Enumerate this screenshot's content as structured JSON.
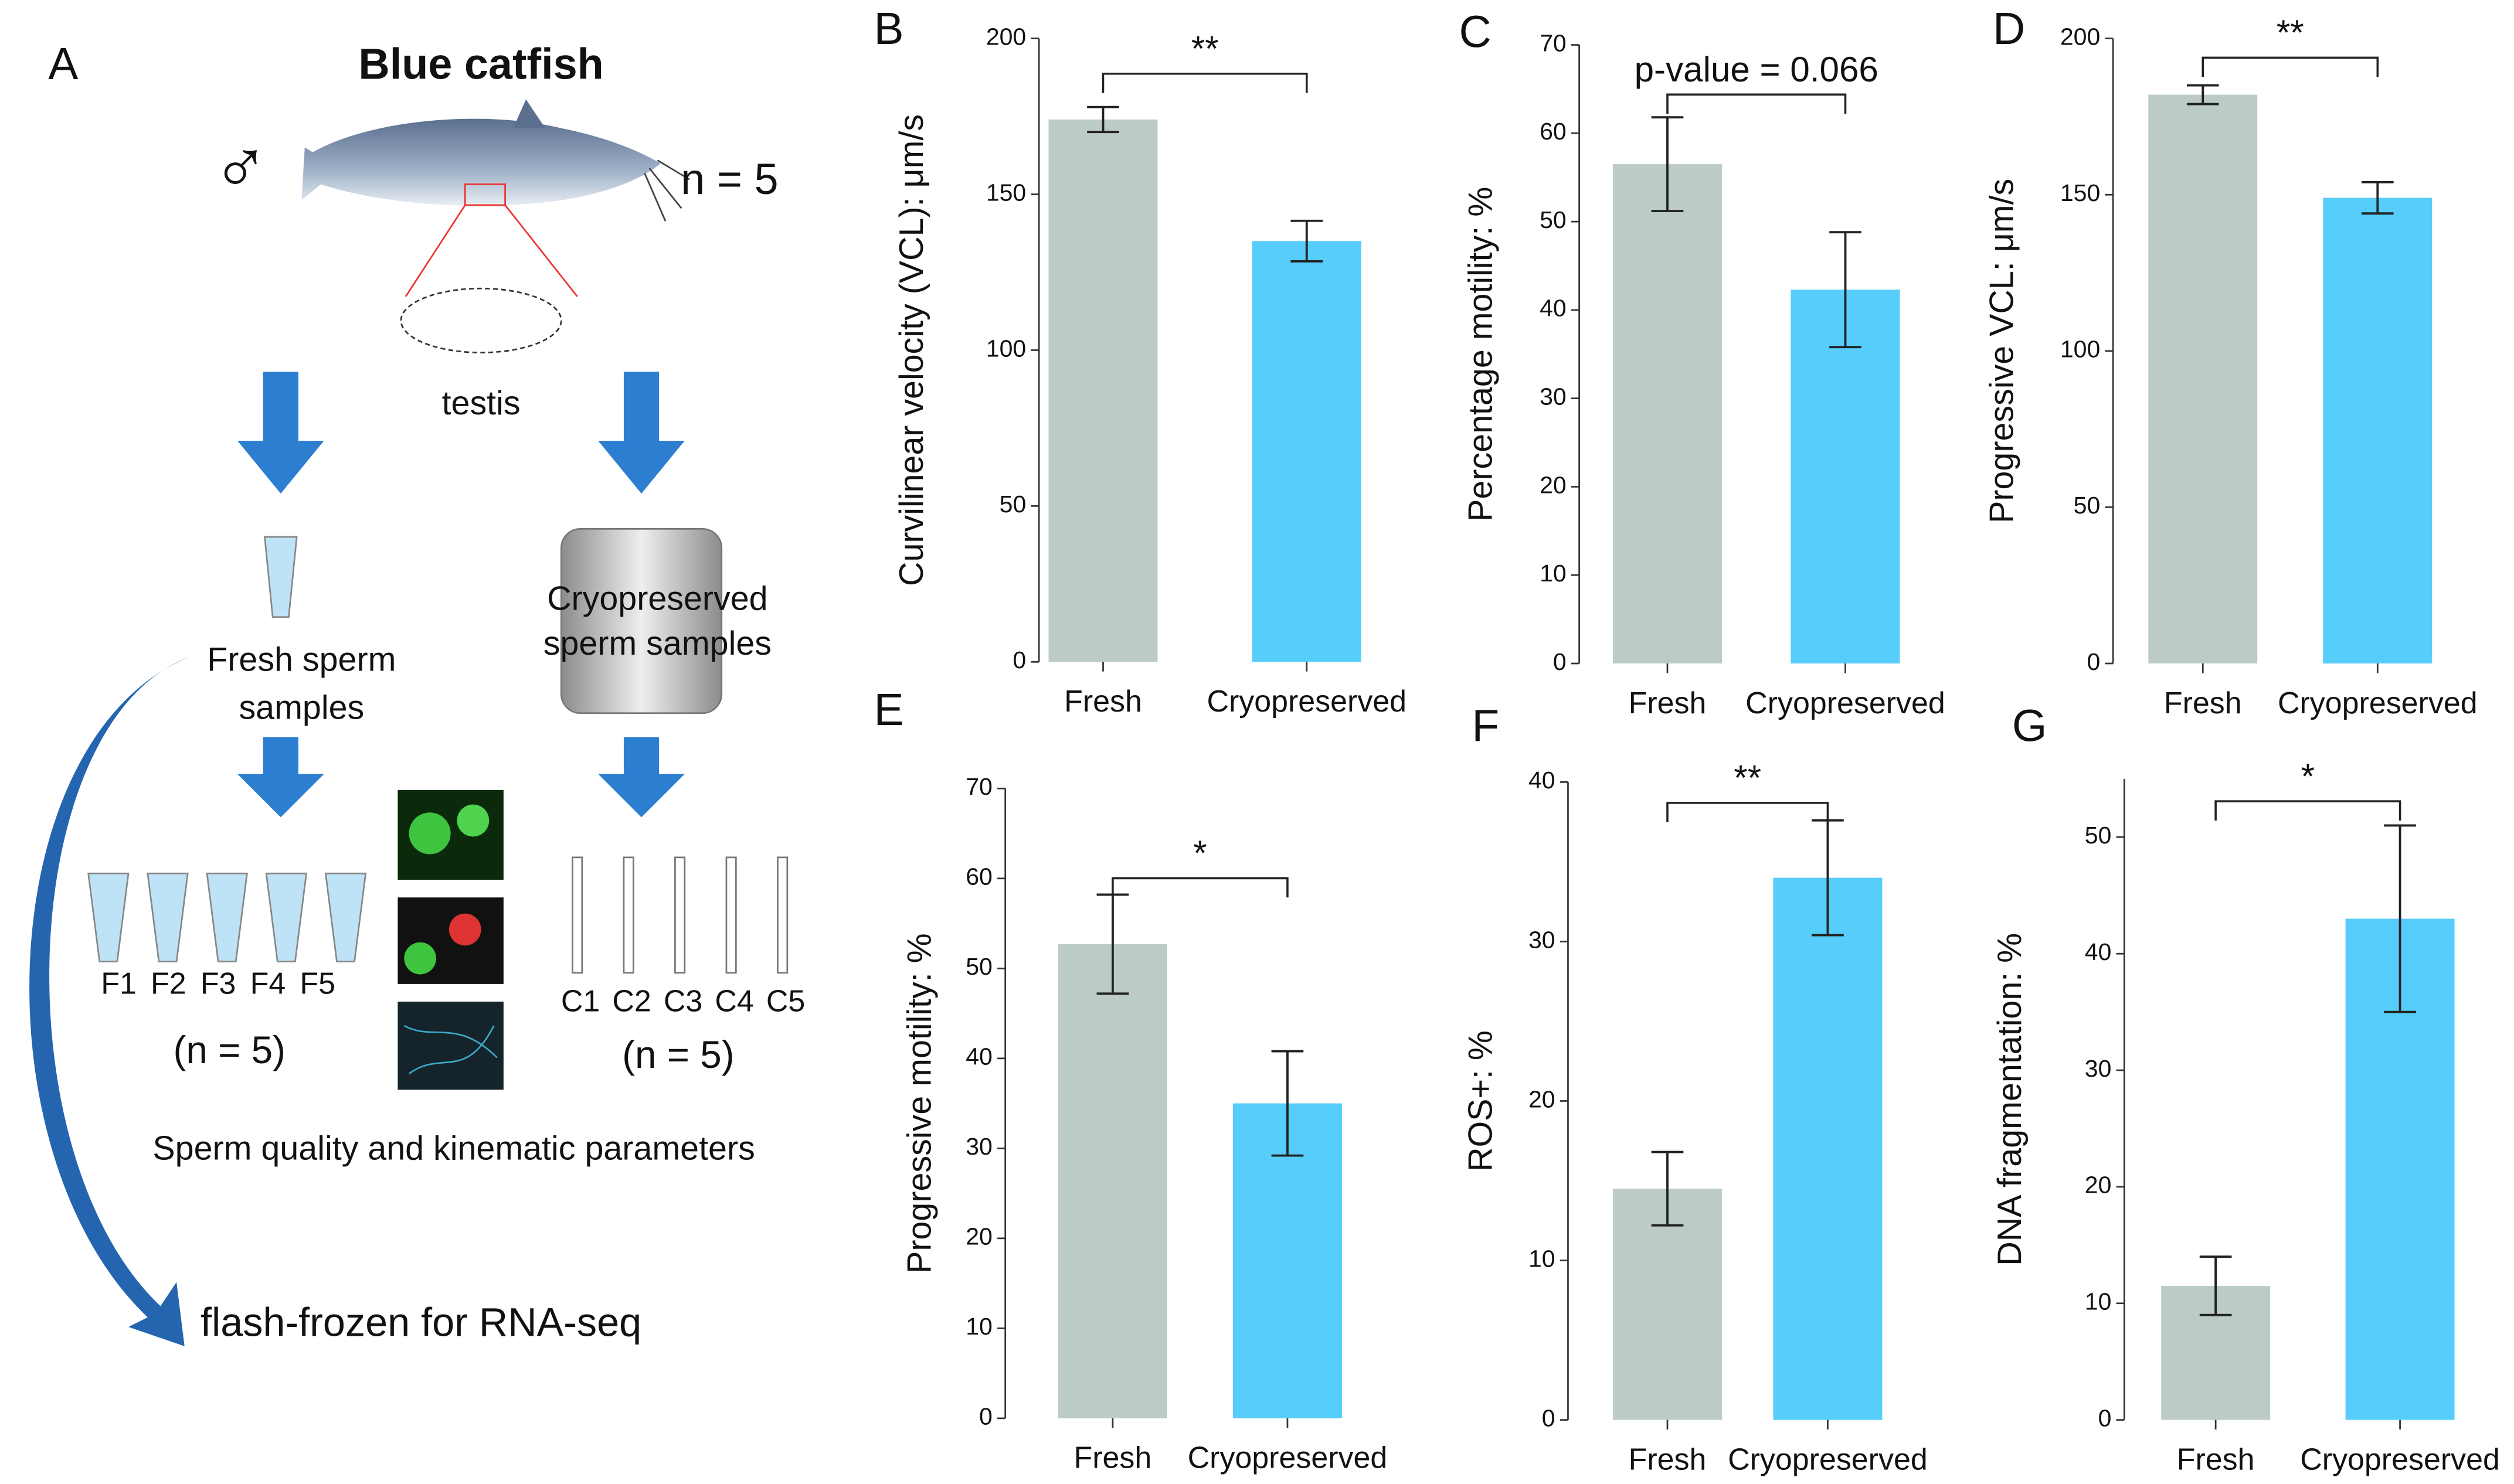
{
  "chart_data": [
    {
      "type": "bar",
      "panel": "B",
      "ylabel": "Curvilinear velocity (VCL): μm/s",
      "categories": [
        "Fresh",
        "Cryopreserved"
      ],
      "values": [
        174,
        135
      ],
      "errors": [
        4,
        6.5
      ],
      "colors": [
        "#bccbc8",
        "#56cdfb"
      ],
      "ylim": [
        0,
        200
      ],
      "yticks": [
        0,
        50,
        100,
        150,
        200
      ],
      "annotation": "**"
    },
    {
      "type": "bar",
      "panel": "C",
      "ylabel": "Percentage motility: %",
      "categories": [
        "Fresh",
        "Cryopreserved"
      ],
      "values": [
        56.5,
        42.3
      ],
      "errors": [
        5.3,
        6.5
      ],
      "colors": [
        "#bccbc8",
        "#56cdfb"
      ],
      "ylim": [
        0,
        70
      ],
      "yticks": [
        0,
        10,
        20,
        30,
        40,
        50,
        60,
        70
      ],
      "annotation": "p-value = 0.066"
    },
    {
      "type": "bar",
      "panel": "D",
      "ylabel": "Progressive VCL: μm/s",
      "categories": [
        "Fresh",
        "Cryopreserved"
      ],
      "values": [
        182,
        149
      ],
      "errors": [
        3,
        5
      ],
      "colors": [
        "#bccbc8",
        "#56cdfb"
      ],
      "ylim": [
        0,
        200
      ],
      "yticks": [
        0,
        50,
        100,
        150,
        200
      ],
      "annotation": "**"
    },
    {
      "type": "bar",
      "panel": "E",
      "ylabel": "Progressive motility: %",
      "categories": [
        "Fresh",
        "Cryopreserved"
      ],
      "values": [
        52.7,
        35
      ],
      "errors": [
        5.5,
        5.8
      ],
      "colors": [
        "#bccbc8",
        "#56cdfb"
      ],
      "ylim": [
        0,
        70
      ],
      "yticks": [
        0,
        10,
        20,
        30,
        40,
        50,
        60,
        70
      ],
      "annotation": "*"
    },
    {
      "type": "bar",
      "panel": "F",
      "ylabel": "ROS+: %",
      "categories": [
        "Fresh",
        "Cryopreserved"
      ],
      "values": [
        14.5,
        34
      ],
      "errors": [
        2.3,
        3.6
      ],
      "colors": [
        "#bccbc8",
        "#56cdfb"
      ],
      "ylim": [
        0,
        40
      ],
      "yticks": [
        0,
        10,
        20,
        30,
        40
      ],
      "annotation": "**"
    },
    {
      "type": "bar",
      "panel": "G",
      "ylabel": "DNA fragmentation: %",
      "categories": [
        "Fresh",
        "Cryopreserved"
      ],
      "values": [
        11.5,
        43
      ],
      "errors": [
        2.5,
        8
      ],
      "colors": [
        "#bccbc8",
        "#56cdfb"
      ],
      "ylim": [
        0,
        55
      ],
      "yticks": [
        0,
        10,
        20,
        30,
        40,
        50
      ],
      "annotation": "*"
    }
  ],
  "diagram": {
    "panel": "A",
    "title": "Blue catfish",
    "male": "♂",
    "n": "n = 5",
    "organ": "testis",
    "fresh": [
      "Fresh sperm",
      "samples"
    ],
    "cryo": [
      "Cryopreserved",
      "sperm samples"
    ],
    "fresh_tubes": [
      "F1",
      "F2",
      "F3",
      "F4",
      "F5"
    ],
    "cryo_straws": [
      "C1",
      "C2",
      "C3",
      "C4",
      "C5"
    ],
    "fresh_n": "(n = 5)",
    "cryo_n": "(n = 5)",
    "quality": "Sperm quality and kinematic parameters",
    "final": "flash-frozen for RNA-seq"
  }
}
